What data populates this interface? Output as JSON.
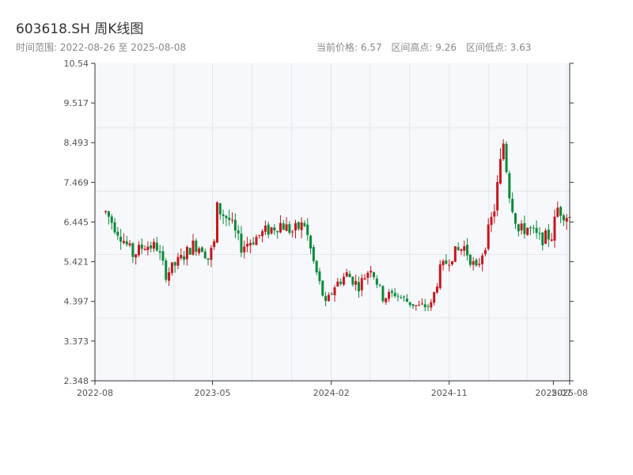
{
  "header": {
    "title": "603618.SH 周K线图",
    "range_label": "时间范围: 2022-08-26 至 2025-08-08",
    "current_price_label": "当前价格: 6.57",
    "high_label": "区间高点: 9.26",
    "low_label": "区间低点: 3.63"
  },
  "colors": {
    "up": "#c8161d",
    "down": "#0b8a3a",
    "plot_bg": "#f6f8fb",
    "grid": "#e3e6ea",
    "axis": "#333333"
  },
  "chart_data": {
    "type": "candlestick",
    "ylim": [
      2.348,
      10.54
    ],
    "y_ticks": [
      2.348,
      3.373,
      4.397,
      5.421,
      6.445,
      7.469,
      8.493,
      9.517,
      10.54
    ],
    "y_tick_labels": [
      "2.348",
      "3.373",
      "4.397",
      "5.421",
      "6.445",
      "7.469",
      "8.493",
      "9.517",
      "10.54"
    ],
    "x_range": [
      "2022-08-26",
      "2025-08-08"
    ],
    "x_ticks": [
      {
        "date": "2022-08-01",
        "label": "2022-08"
      },
      {
        "date": "2023-05-01",
        "label": "2023-05"
      },
      {
        "date": "2024-02-01",
        "label": "2024-02"
      },
      {
        "date": "2024-11-01",
        "label": "2024-11"
      },
      {
        "date": "2025-07-01",
        "label": "2025-07"
      },
      {
        "date": "2025-08-08",
        "label": "2025-08"
      }
    ],
    "x_grid": [
      "2022-08-01",
      "2022-11-01",
      "2023-02-01",
      "2023-05-01",
      "2023-08-01",
      "2023-11-01",
      "2024-02-01",
      "2024-05-01",
      "2024-08-01",
      "2024-11-01",
      "2025-02-01",
      "2025-05-01",
      "2025-08-01"
    ],
    "y_grid": [
      3.97,
      5.61,
      7.24,
      8.88
    ],
    "levels": [
      {
        "date": "2022-08-26",
        "v": 6.7
      },
      {
        "date": "2022-09-30",
        "v": 6.1
      },
      {
        "date": "2022-10-28",
        "v": 5.6
      },
      {
        "date": "2022-11-25",
        "v": 5.85
      },
      {
        "date": "2022-12-23",
        "v": 5.8
      },
      {
        "date": "2023-01-13",
        "v": 5.1
      },
      {
        "date": "2023-02-17",
        "v": 5.5
      },
      {
        "date": "2023-03-17",
        "v": 5.85
      },
      {
        "date": "2023-04-07",
        "v": 5.8
      },
      {
        "date": "2023-04-21",
        "v": 5.5
      },
      {
        "date": "2023-05-05",
        "v": 5.9
      },
      {
        "date": "2023-05-12",
        "v": 6.8
      },
      {
        "date": "2023-06-09",
        "v": 6.5
      },
      {
        "date": "2023-07-07",
        "v": 5.8
      },
      {
        "date": "2023-08-04",
        "v": 6.0
      },
      {
        "date": "2023-09-01",
        "v": 6.2
      },
      {
        "date": "2023-10-06",
        "v": 6.4
      },
      {
        "date": "2023-11-03",
        "v": 6.2
      },
      {
        "date": "2023-12-01",
        "v": 6.4
      },
      {
        "date": "2023-12-22",
        "v": 5.4
      },
      {
        "date": "2024-01-19",
        "v": 4.3
      },
      {
        "date": "2024-02-09",
        "v": 4.8
      },
      {
        "date": "2024-03-08",
        "v": 5.1
      },
      {
        "date": "2024-04-05",
        "v": 4.8
      },
      {
        "date": "2024-05-03",
        "v": 5.3
      },
      {
        "date": "2024-05-31",
        "v": 4.5
      },
      {
        "date": "2024-06-28",
        "v": 4.6
      },
      {
        "date": "2024-07-26",
        "v": 4.4
      },
      {
        "date": "2024-08-23",
        "v": 4.25
      },
      {
        "date": "2024-09-20",
        "v": 4.3
      },
      {
        "date": "2024-10-11",
        "v": 5.2
      },
      {
        "date": "2024-11-08",
        "v": 5.6
      },
      {
        "date": "2024-12-06",
        "v": 5.8
      },
      {
        "date": "2025-01-03",
        "v": 5.2
      },
      {
        "date": "2025-01-24",
        "v": 5.9
      },
      {
        "date": "2025-02-14",
        "v": 6.8
      },
      {
        "date": "2025-03-07",
        "v": 8.5
      },
      {
        "date": "2025-03-21",
        "v": 7.2
      },
      {
        "date": "2025-04-11",
        "v": 6.2
      },
      {
        "date": "2025-05-02",
        "v": 6.3
      },
      {
        "date": "2025-05-30",
        "v": 6.0
      },
      {
        "date": "2025-06-27",
        "v": 6.1
      },
      {
        "date": "2025-07-11",
        "v": 6.8
      },
      {
        "date": "2025-08-08",
        "v": 6.57
      }
    ]
  }
}
